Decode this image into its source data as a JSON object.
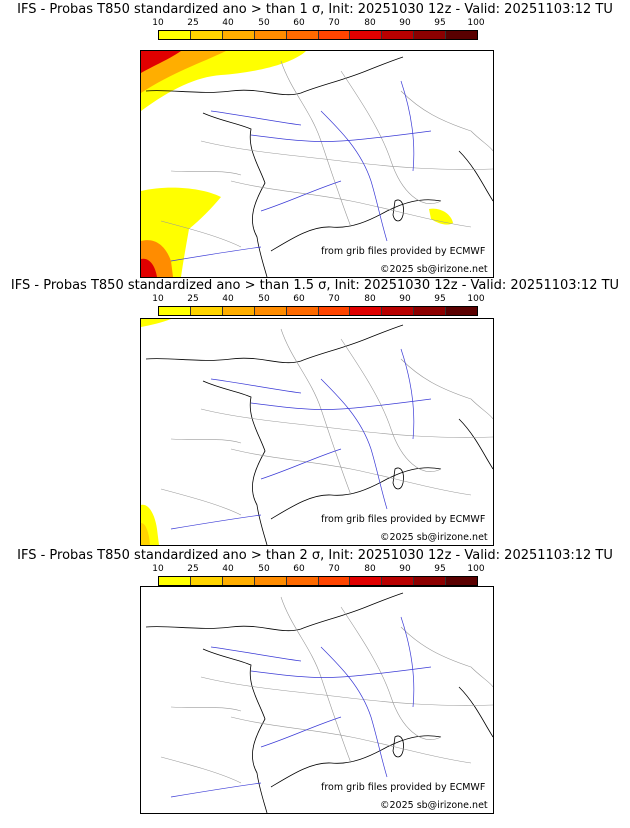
{
  "colorbar": {
    "labels": [
      "10",
      "25",
      "40",
      "50",
      "60",
      "70",
      "80",
      "90",
      "95",
      "100"
    ],
    "colors": [
      "#ffff00",
      "#ffd400",
      "#ffae00",
      "#ff8c00",
      "#ff6a00",
      "#ff4400",
      "#e00000",
      "#b80000",
      "#8c0000",
      "#5a0000"
    ]
  },
  "panels": [
    {
      "title": "IFS - Probas T850  standardized ano > than 1 σ, Init: 20251030 12z - Valid: 20251103:12 TU",
      "credit_source": "from grib files provided by ECMWF",
      "credit_copyright": "©2025 sb@irizone.net"
    },
    {
      "title": "IFS - Probas T850  standardized ano > than 1.5 σ, Init: 20251030 12z - Valid: 20251103:12 TU",
      "credit_source": "from grib files provided by ECMWF",
      "credit_copyright": "©2025 sb@irizone.net"
    },
    {
      "title": "IFS - Probas T850  standardized ano > than 2 σ, Init: 20251030 12z - Valid: 20251103:12 TU",
      "credit_source": "from grib files provided by ECMWF",
      "credit_copyright": "©2025 sb@irizone.net"
    }
  ]
}
